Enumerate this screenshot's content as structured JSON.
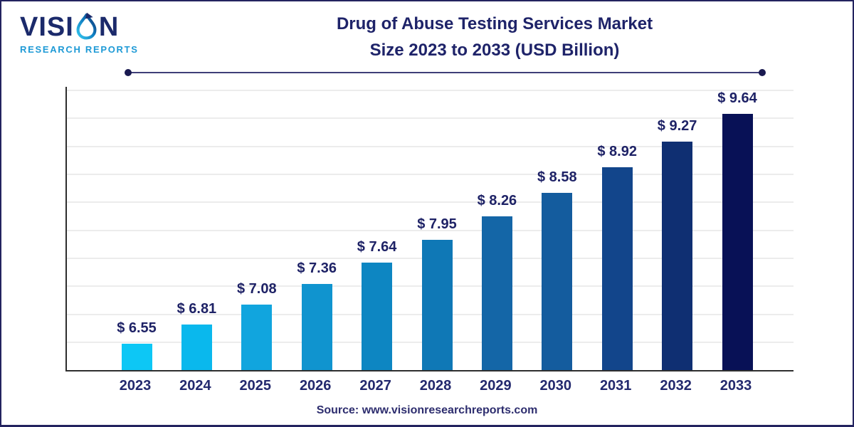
{
  "header": {
    "logo": {
      "brand_prefix": "VISI",
      "brand_suffix": "N",
      "subtitle": "RESEARCH REPORTS"
    },
    "title_line1": "Drug of Abuse Testing Services Market",
    "title_line2": "Size 2023 to 2033 (USD Billion)"
  },
  "footer": {
    "source_text": "Source: www.visionresearchreports.com"
  },
  "chart_data": {
    "type": "bar",
    "title": "Drug of Abuse Testing Services Market Size 2023 to 2033 (USD Billion)",
    "categories": [
      "2023",
      "2024",
      "2025",
      "2026",
      "2027",
      "2028",
      "2029",
      "2030",
      "2031",
      "2032",
      "2033"
    ],
    "values": [
      6.55,
      6.81,
      7.08,
      7.36,
      7.64,
      7.95,
      8.26,
      8.58,
      8.92,
      9.27,
      9.64
    ],
    "value_label_prefix": "$ ",
    "bar_colors": [
      "#0dc7f5",
      "#0ab8ed",
      "#11a5de",
      "#1094cf",
      "#0d86c2",
      "#0f78b6",
      "#1466a7",
      "#145c9e",
      "#12458b",
      "#0f2f72",
      "#081156"
    ],
    "ylim": [
      6.2,
      10.0
    ],
    "grid": true,
    "gridline_count": 10,
    "legend": false,
    "xlabel": "",
    "ylabel": ""
  },
  "colors": {
    "title": "#1e2369",
    "value_label": "#1e2266",
    "year_label": "#23296e",
    "axis": "#2e2e2e",
    "gridline": "#ececec",
    "underline": "#3f3f78",
    "underline_dot": "#191950",
    "frame_border": "#23235f",
    "source_text": "#2d2d6e",
    "logo_brand": "#1b2a6b",
    "logo_subtitle": "#1e9ad6",
    "bar_lightest": "#0dc7f5",
    "bar_darkest": "#081156"
  }
}
